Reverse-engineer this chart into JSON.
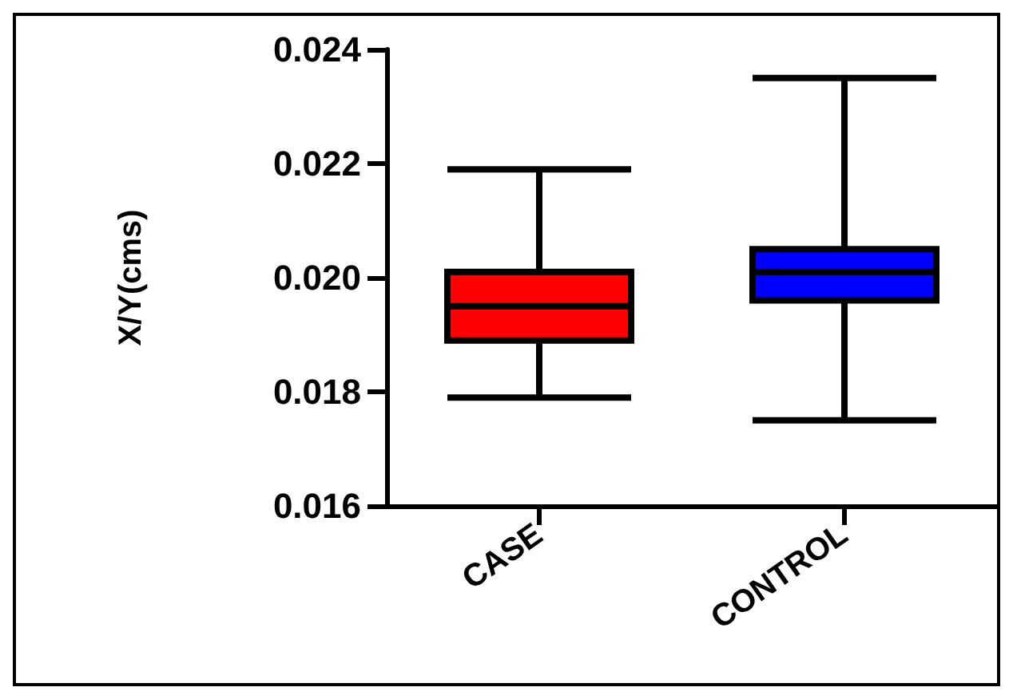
{
  "chart_data": {
    "type": "box",
    "ylabel": "X/Y(cms)",
    "categories": [
      "CASE",
      "CONTROL"
    ],
    "colors": [
      "#ff0000",
      "#0000ff"
    ],
    "boxes": [
      {
        "low": 0.0179,
        "q1": 0.0189,
        "median": 0.0195,
        "q3": 0.0201,
        "high": 0.0219
      },
      {
        "low": 0.0175,
        "q1": 0.0196,
        "median": 0.0201,
        "q3": 0.0205,
        "high": 0.0235
      }
    ],
    "ylim": [
      0.016,
      0.024
    ],
    "yticks": [
      {
        "value": 0.016,
        "label": "0.016"
      },
      {
        "value": 0.018,
        "label": "0.018"
      },
      {
        "value": 0.02,
        "label": "0.020"
      },
      {
        "value": 0.022,
        "label": "0.022"
      },
      {
        "value": 0.024,
        "label": "0.024"
      }
    ],
    "grid": false
  }
}
